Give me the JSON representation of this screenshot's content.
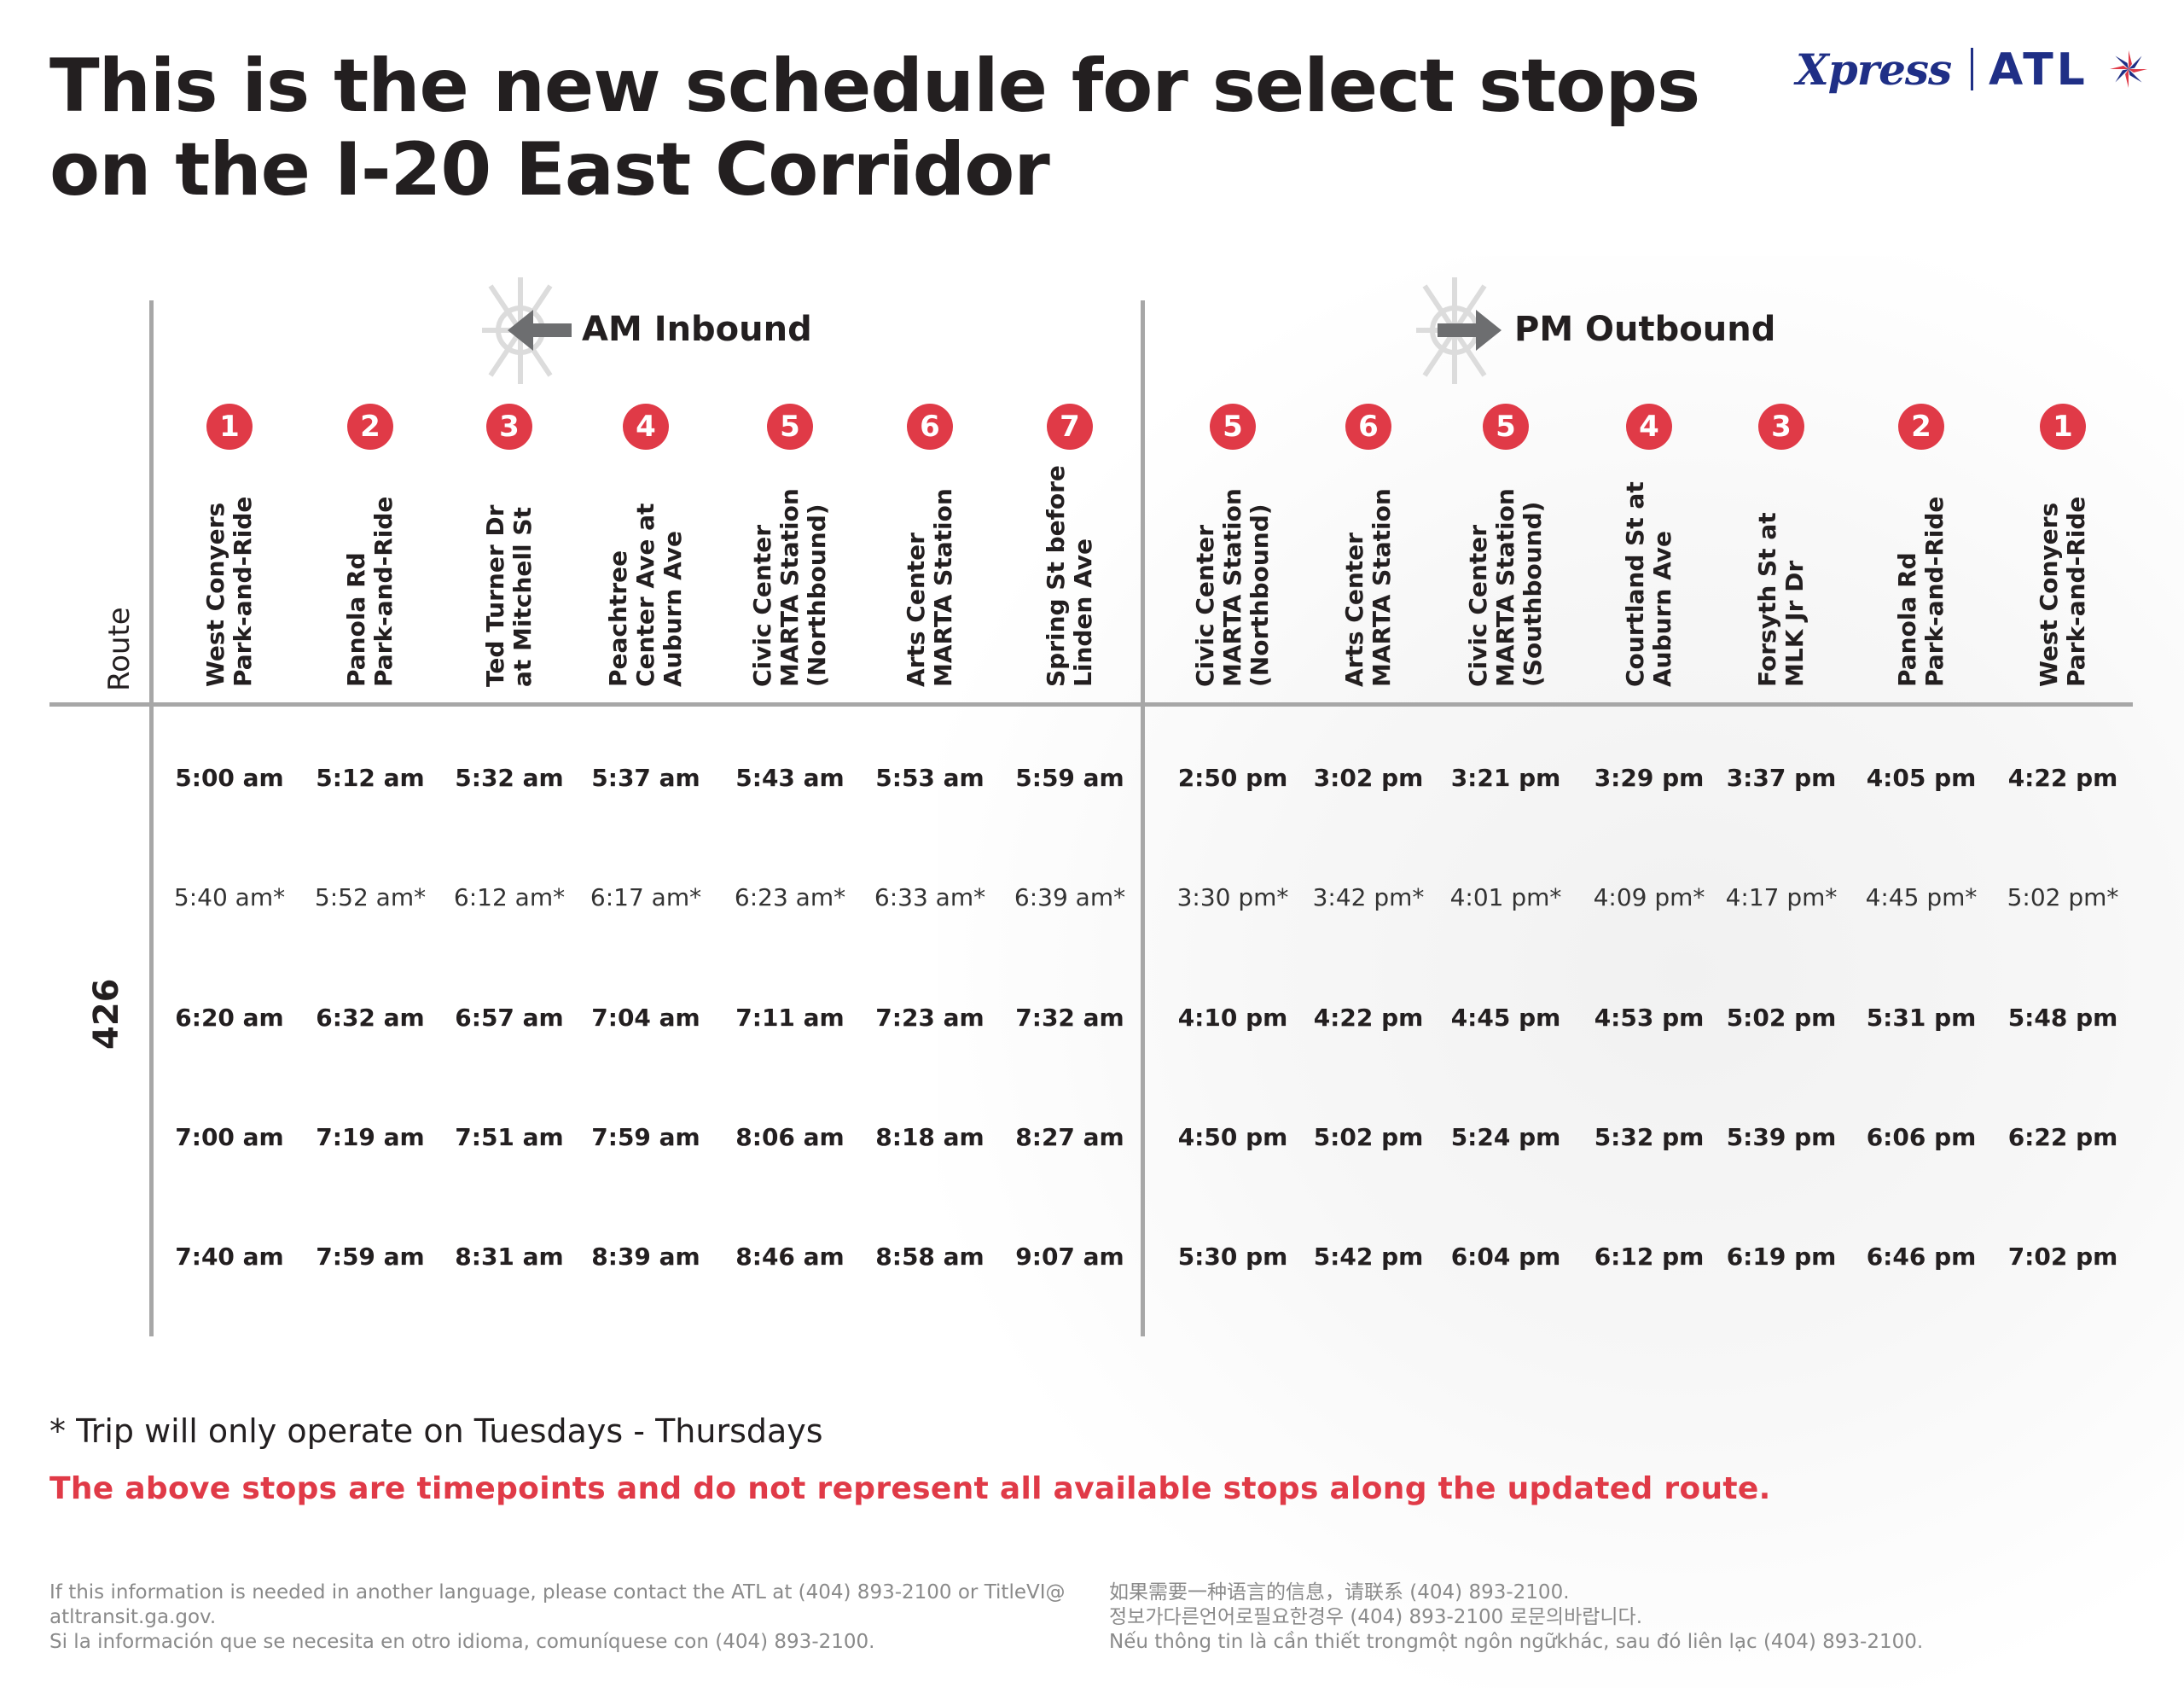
{
  "title": {
    "line1": "This is the new schedule for select stops",
    "line2": "on the I-20 East Corridor"
  },
  "logo": {
    "xpress": "Xpress",
    "atl": "ATL",
    "xpress_color": "#1f2f86",
    "star_icon": "atl-star-icon"
  },
  "route_header": "Route",
  "route_number": "426",
  "am": {
    "heading": "AM Inbound",
    "arrow_icon": "left-arrow-icon",
    "stops": [
      {
        "num": "1",
        "name": "West Conyers\nPark-and-Ride"
      },
      {
        "num": "2",
        "name": "Panola Rd\nPark-and-Ride"
      },
      {
        "num": "3",
        "name": "Ted Turner Dr\nat Mitchell St"
      },
      {
        "num": "4",
        "name": "Peachtree\nCenter Ave at\nAuburn Ave"
      },
      {
        "num": "5",
        "name": "Civic Center\nMARTA Station\n(Northbound)"
      },
      {
        "num": "6",
        "name": "Arts Center\nMARTA Station"
      },
      {
        "num": "7",
        "name": "Spring St before\nLinden Ave"
      }
    ],
    "rows": [
      [
        "5:00 am",
        "5:12 am",
        "5:32 am",
        "5:37 am",
        "5:43 am",
        "5:53 am",
        "5:59 am"
      ],
      [
        "5:40 am*",
        "5:52 am*",
        "6:12 am*",
        "6:17 am*",
        "6:23 am*",
        "6:33 am*",
        "6:39 am*"
      ],
      [
        "6:20 am",
        "6:32 am",
        "6:57 am",
        "7:04 am",
        "7:11 am",
        "7:23 am",
        "7:32 am"
      ],
      [
        "7:00 am",
        "7:19 am",
        "7:51 am",
        "7:59 am",
        "8:06 am",
        "8:18 am",
        "8:27 am"
      ],
      [
        "7:40 am",
        "7:59 am",
        "8:31 am",
        "8:39 am",
        "8:46 am",
        "8:58 am",
        "9:07 am"
      ]
    ]
  },
  "pm": {
    "heading": "PM Outbound",
    "arrow_icon": "right-arrow-icon",
    "stops": [
      {
        "num": "5",
        "name": "Civic Center\nMARTA Station\n(Northbound)"
      },
      {
        "num": "6",
        "name": "Arts Center\nMARTA Station"
      },
      {
        "num": "5",
        "name": "Civic Center\nMARTA Station\n(Southbound)"
      },
      {
        "num": "4",
        "name": "Courtland St at\nAuburn Ave"
      },
      {
        "num": "3",
        "name": "Forsyth St at\nMLK Jr Dr"
      },
      {
        "num": "2",
        "name": "Panola Rd\nPark-and-Ride"
      },
      {
        "num": "1",
        "name": "West Conyers\nPark-and-Ride"
      }
    ],
    "rows": [
      [
        "2:50 pm",
        "3:02 pm",
        "3:21 pm",
        "3:29 pm",
        "3:37 pm",
        "4:05 pm",
        "4:22 pm"
      ],
      [
        "3:30 pm*",
        "3:42 pm*",
        "4:01 pm*",
        "4:09 pm*",
        "4:17 pm*",
        "4:45 pm*",
        "5:02 pm*"
      ],
      [
        "4:10 pm",
        "4:22 pm",
        "4:45 pm",
        "4:53 pm",
        "5:02 pm",
        "5:31 pm",
        "5:48 pm"
      ],
      [
        "4:50 pm",
        "5:02 pm",
        "5:24 pm",
        "5:32 pm",
        "5:39 pm",
        "6:06 pm",
        "6:22 pm"
      ],
      [
        "5:30 pm",
        "5:42 pm",
        "6:04 pm",
        "6:12 pm",
        "6:19 pm",
        "6:46 pm",
        "7:02 pm"
      ]
    ]
  },
  "row_weights": [
    "bold",
    "light",
    "bold",
    "bold",
    "bold"
  ],
  "footnote": "* Trip will only operate on Tuesdays - Thursdays",
  "warning": "The above stops are timepoints and do not represent all available stops along the updated route.",
  "lang_left": [
    "If this information is needed in another language, please contact the ATL at (404) 893-2100 or TitleVI@",
    "atltransit.ga.gov.",
    "Si la información que se necesita en otro idioma, comuníquese con (404) 893-2100."
  ],
  "lang_right": [
    "如果需要一种语言的信息，请联系 (404) 893-2100.",
    "정보가다른언어로필요한경우 (404) 893-2100 로문의바랍니다.",
    "Nếu thông tin là cần thiết trongmột ngôn ngữkhác, sau đó liên lạc (404) 893-2100."
  ],
  "colors": {
    "badge": "#e03a47",
    "warning": "#e03a47",
    "rule": "#a7a7a7",
    "text": "#231f20"
  }
}
